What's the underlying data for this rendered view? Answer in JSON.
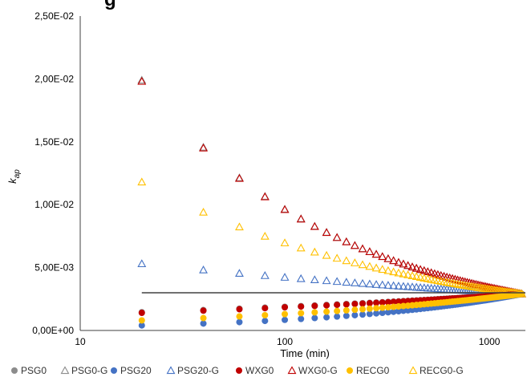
{
  "header_fragment": "g",
  "chart_data": {
    "type": "scatter",
    "title": "",
    "xlabel": "Time (min)",
    "ylabel_main": "k",
    "ylabel_sub": "ap",
    "xscale": "log",
    "xlim": [
      10,
      1500
    ],
    "ylim": [
      0,
      0.025
    ],
    "xticks": [
      10,
      100,
      1000
    ],
    "xtick_labels": [
      "10",
      "100",
      "1000"
    ],
    "yticks": [
      0,
      0.005,
      0.01,
      0.015,
      0.02,
      0.025
    ],
    "ytick_labels": [
      "0,00E+00",
      "5,00E-03",
      "1,00E-02",
      "1,50E-02",
      "2,00E-02",
      "2,50E-02"
    ],
    "grid": false,
    "reference_line_y": 0.003,
    "legend_position": "bottom",
    "x": [
      20,
      40,
      60,
      80,
      100,
      120,
      140,
      160,
      180,
      200,
      220,
      240,
      260,
      280,
      300,
      320,
      340,
      360,
      380,
      400,
      420,
      440,
      460,
      480,
      500,
      520,
      540,
      560,
      580,
      600,
      620,
      640,
      660,
      680,
      700,
      720,
      740,
      760,
      780,
      800,
      820,
      840,
      860,
      880,
      900,
      920,
      940,
      960,
      980,
      1000,
      1020,
      1040,
      1060,
      1080,
      1100,
      1120,
      1140,
      1160,
      1180,
      1200,
      1220,
      1240,
      1260,
      1280,
      1300,
      1320,
      1340,
      1360,
      1380,
      1400,
      1420,
      1440
    ],
    "series": [
      {
        "name": "PSG0",
        "marker": "circle",
        "color": "#8c8c8c",
        "start": 0.00145,
        "end": 0.0029
      },
      {
        "name": "PSG0-G",
        "marker": "triangle",
        "color": "#8c8c8c",
        "start": 0.0199,
        "end": 0.0029
      },
      {
        "name": "PSG20",
        "marker": "circle",
        "color": "#4472c4",
        "start": 0.0004,
        "end": 0.0029
      },
      {
        "name": "PSG20-G",
        "marker": "triangle",
        "color": "#4472c4",
        "start": 0.0053,
        "end": 0.0029
      },
      {
        "name": "WXG0",
        "marker": "circle",
        "color": "#c00000",
        "start": 0.0014,
        "end": 0.0029
      },
      {
        "name": "WXG0-G",
        "marker": "triangle",
        "color": "#c00000",
        "start": 0.0198,
        "end": 0.0029
      },
      {
        "name": "RECG0",
        "marker": "circle",
        "color": "#ffc000",
        "start": 0.0008,
        "end": 0.0029
      },
      {
        "name": "RECG0-G",
        "marker": "triangle",
        "color": "#ffc000",
        "start": 0.0118,
        "end": 0.0029
      }
    ]
  }
}
